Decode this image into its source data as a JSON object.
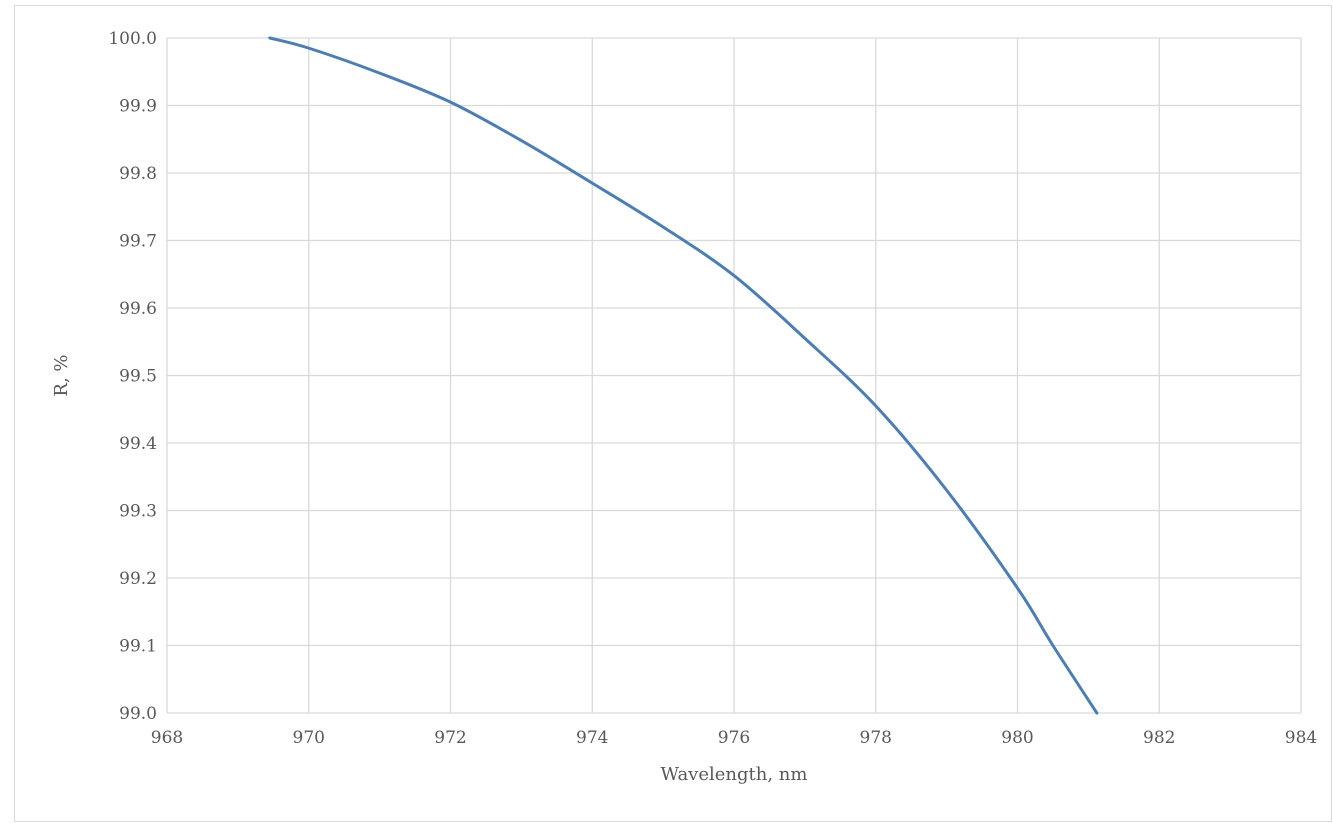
{
  "chart_data": {
    "type": "line",
    "title": "",
    "xlabel": "Wavelength, nm",
    "ylabel": "R, %",
    "xlim": [
      968,
      984
    ],
    "ylim": [
      99.0,
      100.0
    ],
    "x_ticks": [
      968,
      970,
      972,
      974,
      976,
      978,
      980,
      982,
      984
    ],
    "y_ticks": [
      99.0,
      99.1,
      99.2,
      99.3,
      99.4,
      99.5,
      99.6,
      99.7,
      99.8,
      99.9,
      100.0
    ],
    "x_tick_labels": [
      "968",
      "970",
      "972",
      "974",
      "976",
      "978",
      "980",
      "982",
      "984"
    ],
    "y_tick_labels": [
      "99.0",
      "99.1",
      "99.2",
      "99.3",
      "99.4",
      "99.5",
      "99.6",
      "99.7",
      "99.8",
      "99.9",
      "100.0"
    ],
    "grid": true,
    "legend": "none",
    "series": [
      {
        "color": "#4a7ebb",
        "x": [
          969.45,
          970,
          971,
          972,
          973,
          974,
          975,
          976,
          977,
          978,
          979,
          980,
          980.5,
          981.12
        ],
        "y": [
          100.0,
          99.985,
          99.948,
          99.905,
          99.848,
          99.785,
          99.72,
          99.648,
          99.555,
          99.455,
          99.33,
          99.185,
          99.1,
          99.0
        ]
      }
    ]
  }
}
